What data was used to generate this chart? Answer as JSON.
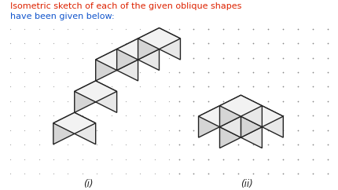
{
  "title_line1": "Isometric sketch of each of the given oblique shapes",
  "title_line2": "have been given below:",
  "title_color1": "#dd2200",
  "title_color2": "#1155cc",
  "label_i": "(i)",
  "label_ii": "(ii)",
  "bg_color": "#ffffff",
  "line_color": "#222222",
  "figsize": [
    4.31,
    2.42
  ],
  "dpi": 100
}
